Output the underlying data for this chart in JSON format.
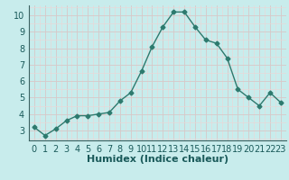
{
  "x": [
    0,
    1,
    2,
    3,
    4,
    5,
    6,
    7,
    8,
    9,
    10,
    11,
    12,
    13,
    14,
    15,
    16,
    17,
    18,
    19,
    20,
    21,
    22,
    23
  ],
  "y": [
    3.2,
    2.7,
    3.1,
    3.6,
    3.9,
    3.9,
    4.0,
    4.1,
    4.8,
    5.3,
    6.6,
    8.1,
    9.3,
    10.2,
    10.2,
    9.3,
    8.5,
    8.3,
    7.4,
    5.5,
    5.0,
    4.5,
    5.3,
    4.7
  ],
  "line_color": "#2d7a6e",
  "marker": "D",
  "marker_size": 2.5,
  "bg_color": "#c8ecec",
  "grid_major_color": "#d8c8c8",
  "grid_minor_color": "#e8d8d8",
  "xlabel": "Humidex (Indice chaleur)",
  "xlabel_fontsize": 8,
  "ylabel_ticks": [
    3,
    4,
    5,
    6,
    7,
    8,
    9,
    10
  ],
  "xlim": [
    -0.5,
    23.5
  ],
  "ylim": [
    2.4,
    10.6
  ],
  "tick_fontsize": 7,
  "line_width": 1.0,
  "tick_color": "#1a5a5a",
  "label_color": "#1a5a5a"
}
